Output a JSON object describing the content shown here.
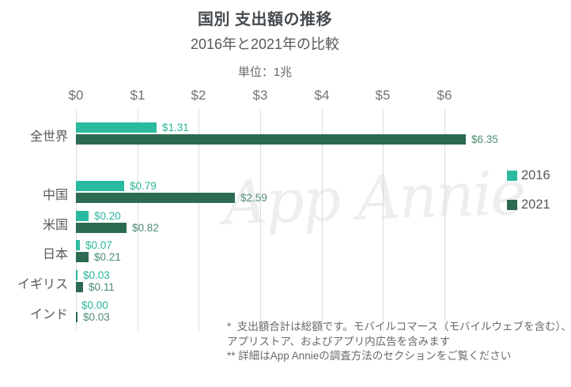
{
  "header": {
    "title": "国別 支出額の推移",
    "subtitle": "2016年と2021年の比較",
    "unit_label": "単位：1兆"
  },
  "watermark": "App Annie",
  "legend": [
    {
      "label": "2016",
      "color": "#2aba9e"
    },
    {
      "label": "2021",
      "color": "#2d6a52"
    }
  ],
  "footnotes": [
    "*  支出額合計は総額です。モバイルコマース（モバイルウェブを含む）、アプリストア、およびアプリ内広告を含みます",
    "** 詳細はApp Annieの調査方法のセクションをご覧ください"
  ],
  "chart_data": {
    "type": "bar",
    "orientation": "horizontal",
    "title": "国別 支出額の推移",
    "subtitle": "2016年と2021年の比較",
    "unit": "単位：1兆 (trillion USD)",
    "categories": [
      "全世界",
      "中国",
      "米国",
      "日本",
      "イギリス",
      "インド"
    ],
    "series": [
      {
        "name": "2016",
        "color": "#2aba9e",
        "label_color": "#29b69a",
        "values": [
          1.31,
          0.79,
          0.2,
          0.07,
          0.03,
          0.0
        ],
        "labels": [
          "$1.31",
          "$0.79",
          "$0.20",
          "$0.07",
          "$0.03",
          "$0.00"
        ]
      },
      {
        "name": "2021",
        "color": "#2d6a52",
        "label_color": "#4d8c70",
        "values": [
          6.35,
          2.59,
          0.82,
          0.21,
          0.11,
          0.03
        ],
        "labels": [
          "$6.35",
          "$2.59",
          "$0.82",
          "$0.21",
          "$0.11",
          "$0.03"
        ]
      }
    ],
    "x_ticks": {
      "labels": [
        "$0",
        "$1",
        "$2",
        "$3",
        "$4",
        "$5",
        "$6"
      ],
      "values": [
        0,
        1,
        2,
        3,
        4,
        5,
        6
      ]
    },
    "xlim": [
      0,
      6.5
    ],
    "grid": true,
    "legend_position": "right"
  }
}
